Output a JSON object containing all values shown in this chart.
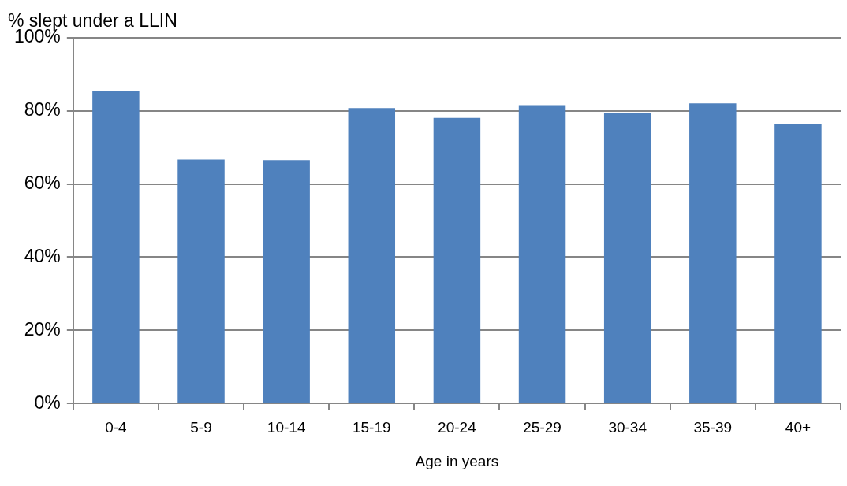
{
  "chart_data": {
    "type": "bar",
    "title": "% slept under a LLIN",
    "xlabel": "Age in years",
    "categories": [
      "0-4",
      "5-9",
      "10-14",
      "15-19",
      "20-24",
      "25-29",
      "30-34",
      "35-39",
      "40+"
    ],
    "values": [
      85.3,
      66.7,
      66.5,
      80.7,
      78.0,
      81.5,
      79.3,
      82.0,
      76.4
    ],
    "color": "#4f81bd",
    "ylim": [
      0,
      100
    ],
    "yticks": [
      {
        "value": 0,
        "label": "0%"
      },
      {
        "value": 20,
        "label": "20%"
      },
      {
        "value": 40,
        "label": "40%"
      },
      {
        "value": 60,
        "label": "60%"
      },
      {
        "value": 80,
        "label": "80%"
      },
      {
        "value": 100,
        "label": "100%"
      }
    ],
    "grid": "y",
    "legend": false
  }
}
